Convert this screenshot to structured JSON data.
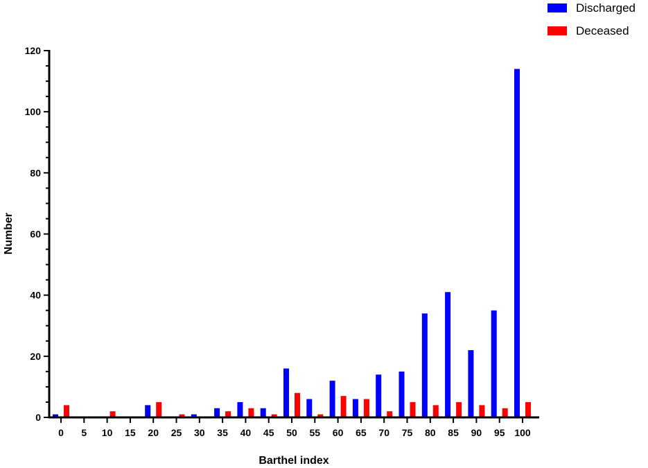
{
  "chart_data": {
    "type": "bar",
    "title": "",
    "xlabel": "Barthel index",
    "ylabel": "Number",
    "categories": [
      "0",
      "5",
      "10",
      "15",
      "20",
      "25",
      "30",
      "35",
      "40",
      "45",
      "50",
      "55",
      "60",
      "65",
      "70",
      "75",
      "80",
      "85",
      "90",
      "95",
      "100"
    ],
    "series": [
      {
        "name": "Discharged",
        "color": "#0000ff",
        "values": [
          1,
          0,
          0,
          0,
          4,
          0,
          1,
          3,
          5,
          3,
          16,
          6,
          12,
          6,
          14,
          15,
          34,
          41,
          22,
          35,
          114
        ]
      },
      {
        "name": "Deceased",
        "color": "#ff0000",
        "values": [
          4,
          0,
          2,
          0,
          5,
          1,
          0,
          2,
          3,
          1,
          8,
          1,
          7,
          6,
          2,
          5,
          4,
          5,
          4,
          3,
          5
        ]
      }
    ],
    "ylim": [
      0,
      120
    ],
    "yticks": [
      0,
      20,
      40,
      60,
      80,
      100,
      120
    ],
    "y_minor_step": 5,
    "grid": false,
    "legend_position": "top-right"
  }
}
